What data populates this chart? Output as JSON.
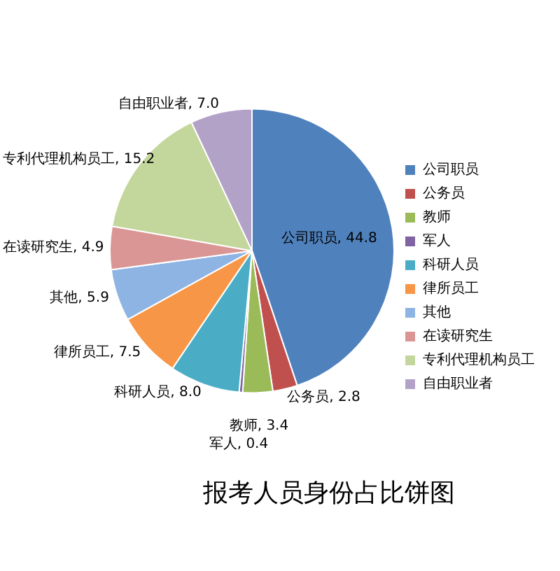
{
  "chart_data": {
    "type": "pie",
    "title": "报考人员身份占比饼图",
    "categories": [
      "公司职员",
      "公务员",
      "教师",
      "军人",
      "科研人员",
      "律所员工",
      "其他",
      "在读研究生",
      "专利代理机构员工",
      "自由职业者"
    ],
    "values": [
      44.8,
      2.8,
      3.4,
      0.4,
      8.0,
      7.5,
      5.9,
      4.9,
      15.2,
      7.0
    ],
    "value_labels": [
      "公司职员, 44.8",
      "公务员, 2.8",
      "教师, 3.4",
      "军人, 0.4",
      "科研人员, 8.0",
      "律所员工, 7.5",
      "其他, 5.9",
      "在读研究生, 4.9",
      "专利代理机构员工, 15.2",
      "自由职业者, 7.0"
    ],
    "colors": [
      "#4f81bd",
      "#c0504d",
      "#9bbb59",
      "#8064a2",
      "#4bacc6",
      "#f79646",
      "#8eb4e3",
      "#d99694",
      "#c3d69b",
      "#b3a2c7"
    ],
    "legend": "right"
  }
}
